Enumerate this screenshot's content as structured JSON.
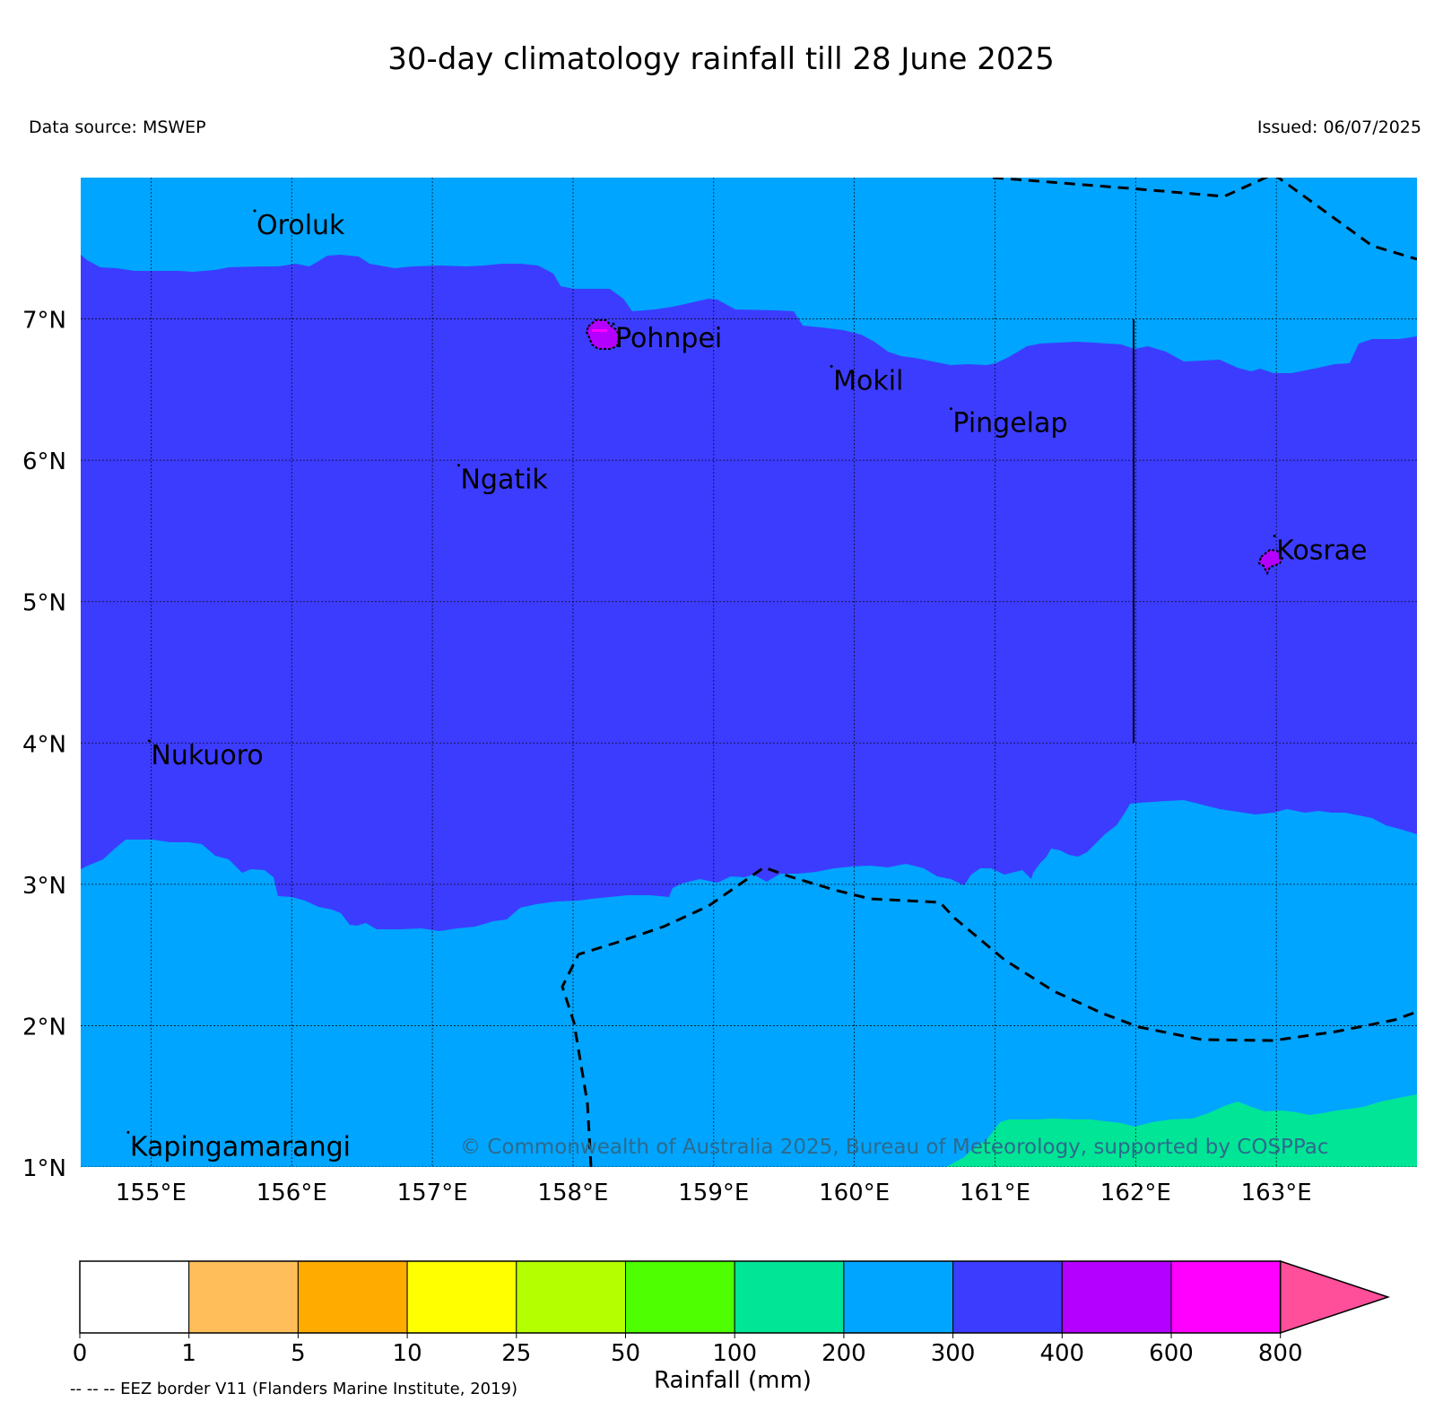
{
  "title": "30-day climatology rainfall till 28 June 2025",
  "data_source": "Data source: MSWEP",
  "issued": "Issued: 06/07/2025",
  "copyright": "© Commonwealth of Australia 2025, Bureau of Meteorology, supported by COSPPac",
  "eez_note": "-- -- -- EEZ border V11 (Flanders Marine Institute, 2019)",
  "map": {
    "lon_range": [
      154.5,
      164.0
    ],
    "lat_range": [
      1.0,
      8.0
    ],
    "lon_ticks": [
      {
        "value": 155,
        "label": "155°E"
      },
      {
        "value": 156,
        "label": "156°E"
      },
      {
        "value": 157,
        "label": "157°E"
      },
      {
        "value": 158,
        "label": "158°E"
      },
      {
        "value": 159,
        "label": "159°E"
      },
      {
        "value": 160,
        "label": "160°E"
      },
      {
        "value": 161,
        "label": "161°E"
      },
      {
        "value": 162,
        "label": "162°E"
      },
      {
        "value": 163,
        "label": "163°E"
      }
    ],
    "lat_ticks": [
      {
        "value": 1,
        "label": "1°N"
      },
      {
        "value": 2,
        "label": "2°N"
      },
      {
        "value": 3,
        "label": "3°N"
      },
      {
        "value": 4,
        "label": "4°N"
      },
      {
        "value": 5,
        "label": "5°N"
      },
      {
        "value": 6,
        "label": "6°N"
      },
      {
        "value": 7,
        "label": "7°N"
      }
    ],
    "places": [
      {
        "name": "Oroluk",
        "lon": 155.75,
        "lat": 7.6
      },
      {
        "name": "Pohnpei",
        "lon": 158.3,
        "lat": 6.8
      },
      {
        "name": "Mokil",
        "lon": 159.85,
        "lat": 6.5
      },
      {
        "name": "Pingelap",
        "lon": 160.7,
        "lat": 6.2
      },
      {
        "name": "Ngatik",
        "lon": 157.2,
        "lat": 5.8
      },
      {
        "name": "Kosrae",
        "lon": 163.0,
        "lat": 5.3
      },
      {
        "name": "Nukuoro",
        "lon": 155.0,
        "lat": 3.85
      },
      {
        "name": "Kapingamarangi",
        "lon": 154.85,
        "lat": 1.08
      }
    ]
  },
  "colorbar": {
    "label": "Rainfall (mm)",
    "ticks": [
      "0",
      "1",
      "5",
      "10",
      "25",
      "50",
      "100",
      "200",
      "300",
      "400",
      "600",
      "800"
    ],
    "colors": [
      "#ffffff",
      "#ffbe5a",
      "#ffab00",
      "#ffff00",
      "#b4ff00",
      "#4dff00",
      "#00e696",
      "#00a5ff",
      "#3c3cff",
      "#b400ff",
      "#ff00ff"
    ],
    "extend_color": "#ff4f9b"
  },
  "colors": {
    "band_200_300": "#00a5ff",
    "band_300_400": "#3c3cff",
    "band_100_200": "#00e696",
    "band_400_600": "#b400ff"
  }
}
